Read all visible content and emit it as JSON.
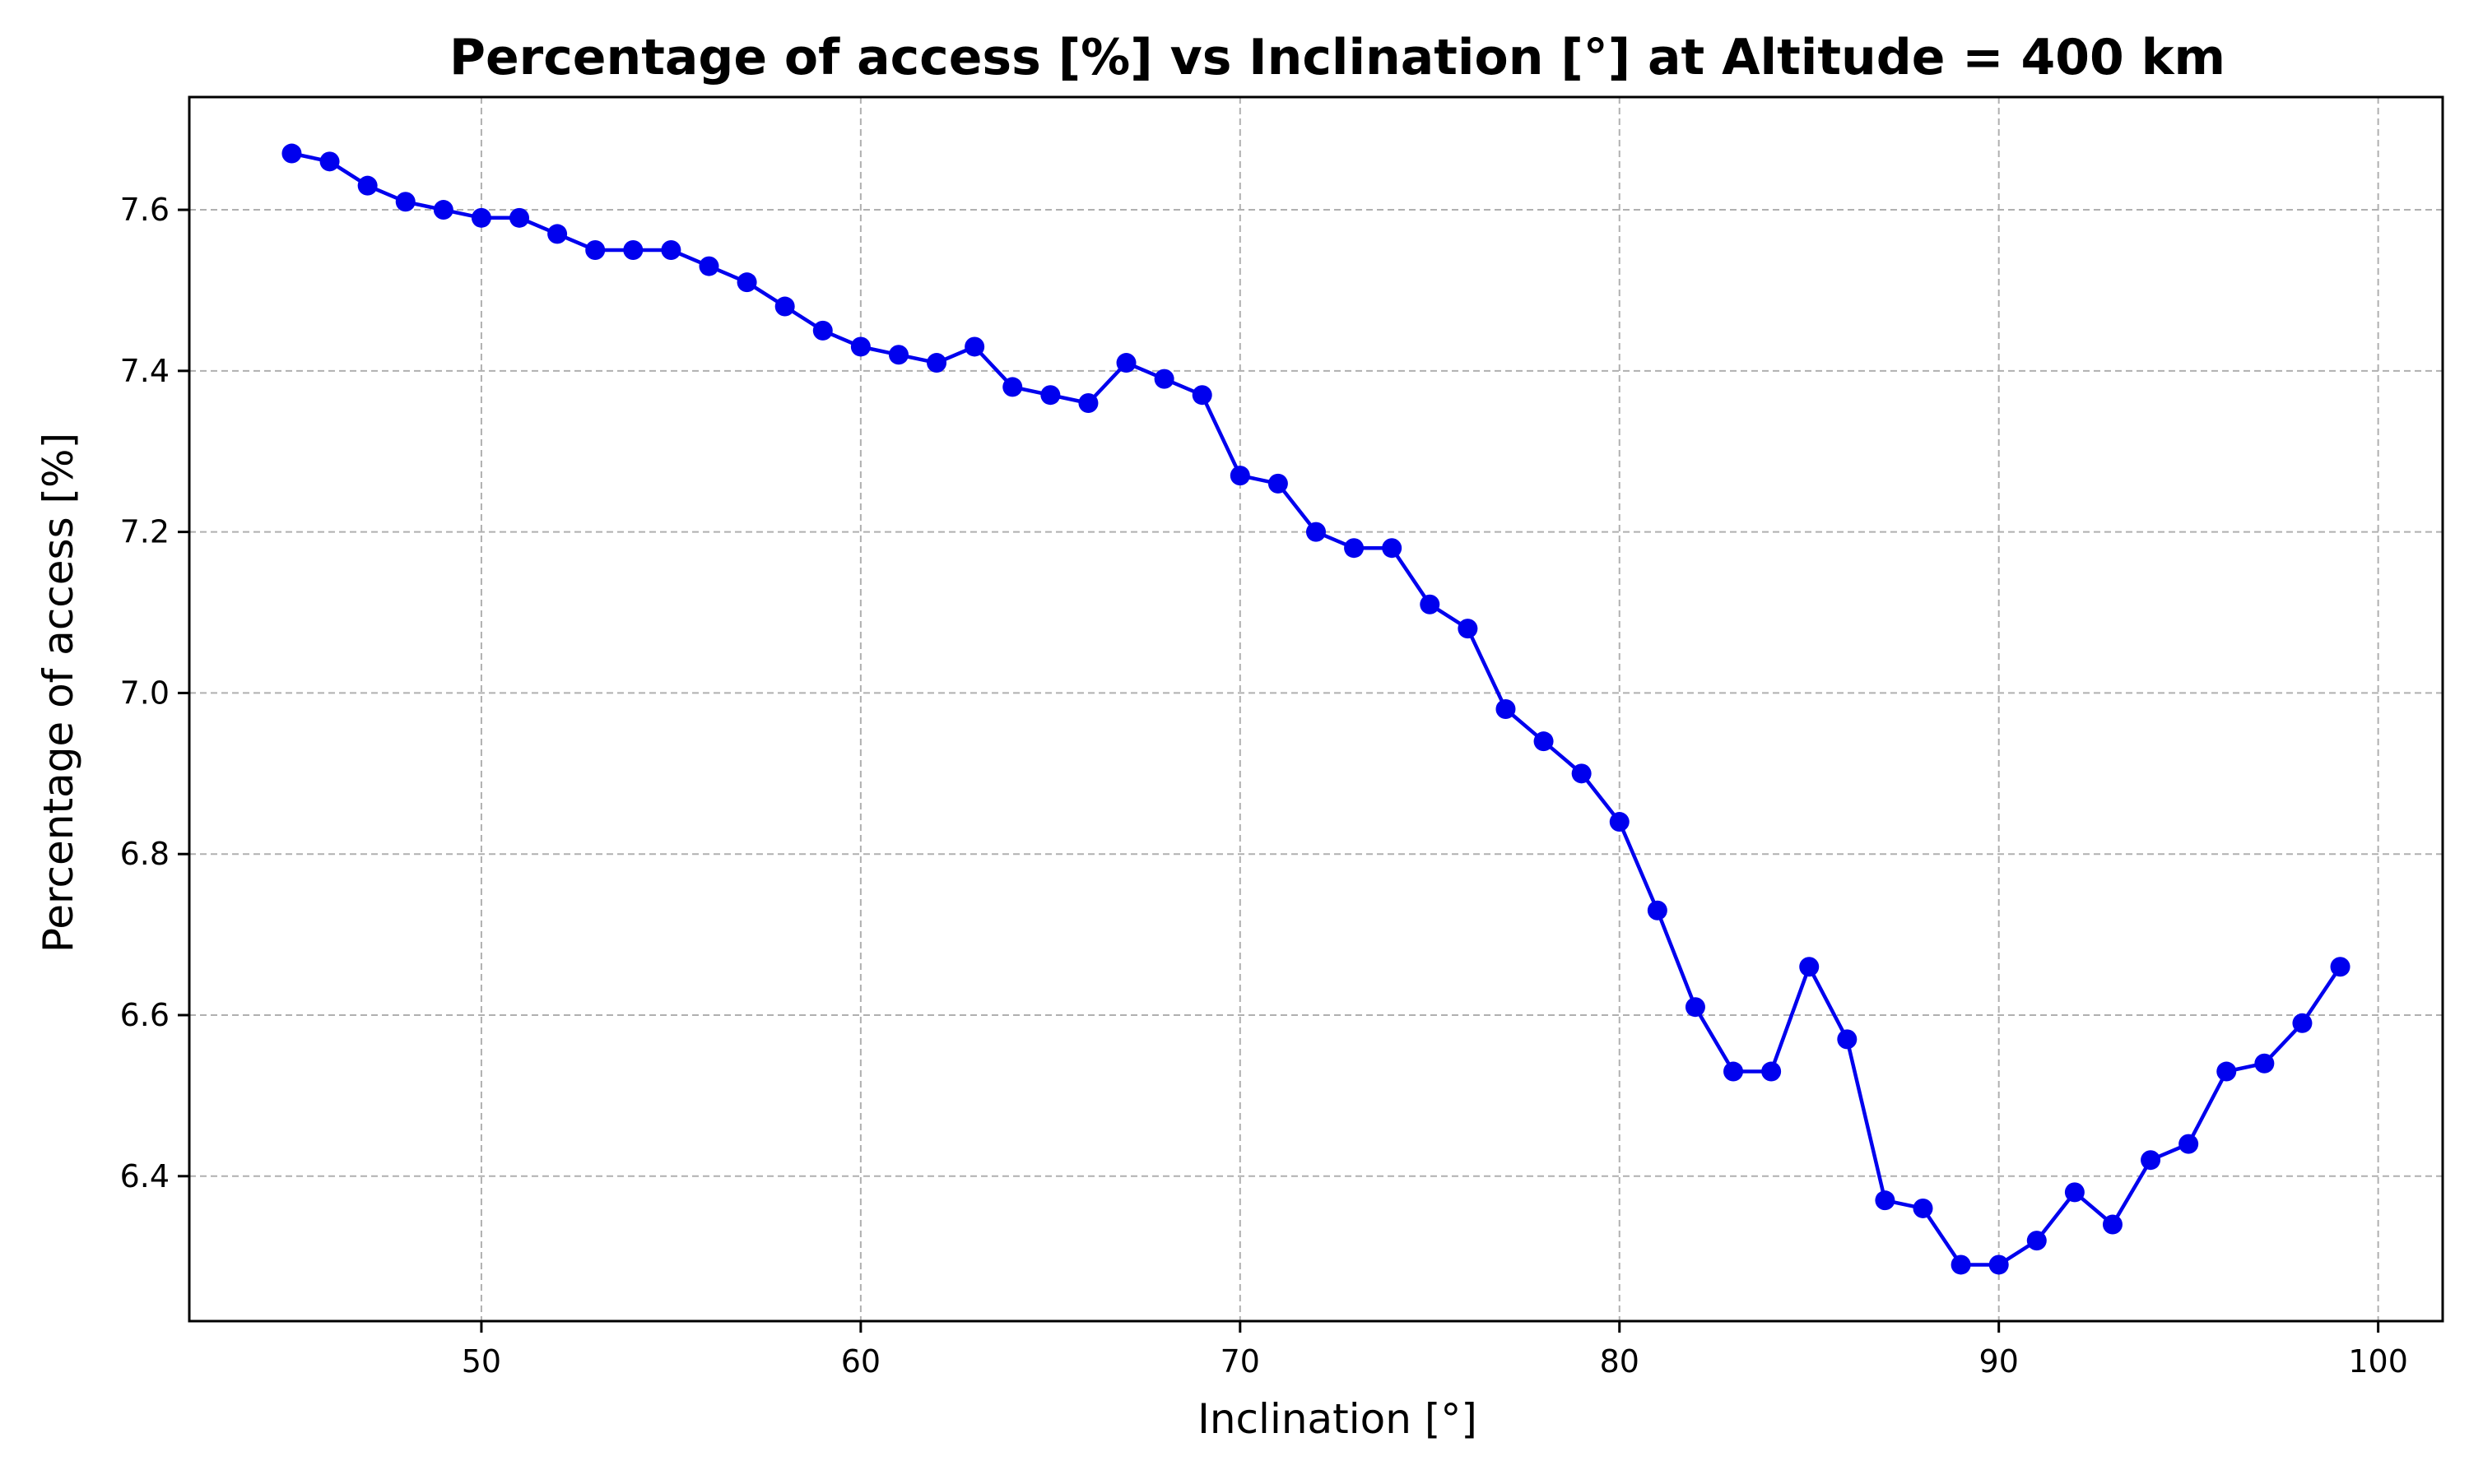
{
  "chart_data": {
    "type": "line",
    "title": "Percentage of access [%] vs Inclination [°] at Altitude = 400 km",
    "xlabel": "Inclination [°]",
    "ylabel": "Percentage of access [%]",
    "xlim": [
      42.3,
      101.7
    ],
    "ylim": [
      6.22,
      7.74
    ],
    "xticks": [
      50,
      60,
      70,
      80,
      90,
      100
    ],
    "yticks": [
      6.4,
      6.6,
      6.8,
      7.0,
      7.2,
      7.4,
      7.6
    ],
    "grid": true,
    "x": [
      45,
      46,
      47,
      48,
      49,
      50,
      51,
      52,
      53,
      54,
      55,
      56,
      57,
      58,
      59,
      60,
      61,
      62,
      63,
      64,
      65,
      66,
      67,
      68,
      69,
      70,
      71,
      72,
      73,
      74,
      75,
      76,
      77,
      78,
      79,
      80,
      81,
      82,
      83,
      84,
      85,
      86,
      87,
      88,
      89,
      90,
      91,
      92,
      93,
      94,
      95,
      96,
      97,
      98,
      99
    ],
    "series": [
      {
        "color": "#0000ee",
        "values": [
          7.67,
          7.66,
          7.63,
          7.61,
          7.6,
          7.59,
          7.59,
          7.57,
          7.55,
          7.55,
          7.55,
          7.53,
          7.51,
          7.48,
          7.45,
          7.43,
          7.42,
          7.41,
          7.43,
          7.38,
          7.37,
          7.36,
          7.41,
          7.39,
          7.37,
          7.27,
          7.26,
          7.2,
          7.18,
          7.18,
          7.11,
          7.08,
          6.98,
          6.94,
          6.9,
          6.84,
          6.73,
          6.61,
          6.53,
          6.53,
          6.66,
          6.57,
          6.37,
          6.36,
          6.29,
          6.29,
          6.32,
          6.38,
          6.34,
          6.42,
          6.44,
          6.53,
          6.54,
          6.59,
          6.66
        ]
      }
    ]
  }
}
